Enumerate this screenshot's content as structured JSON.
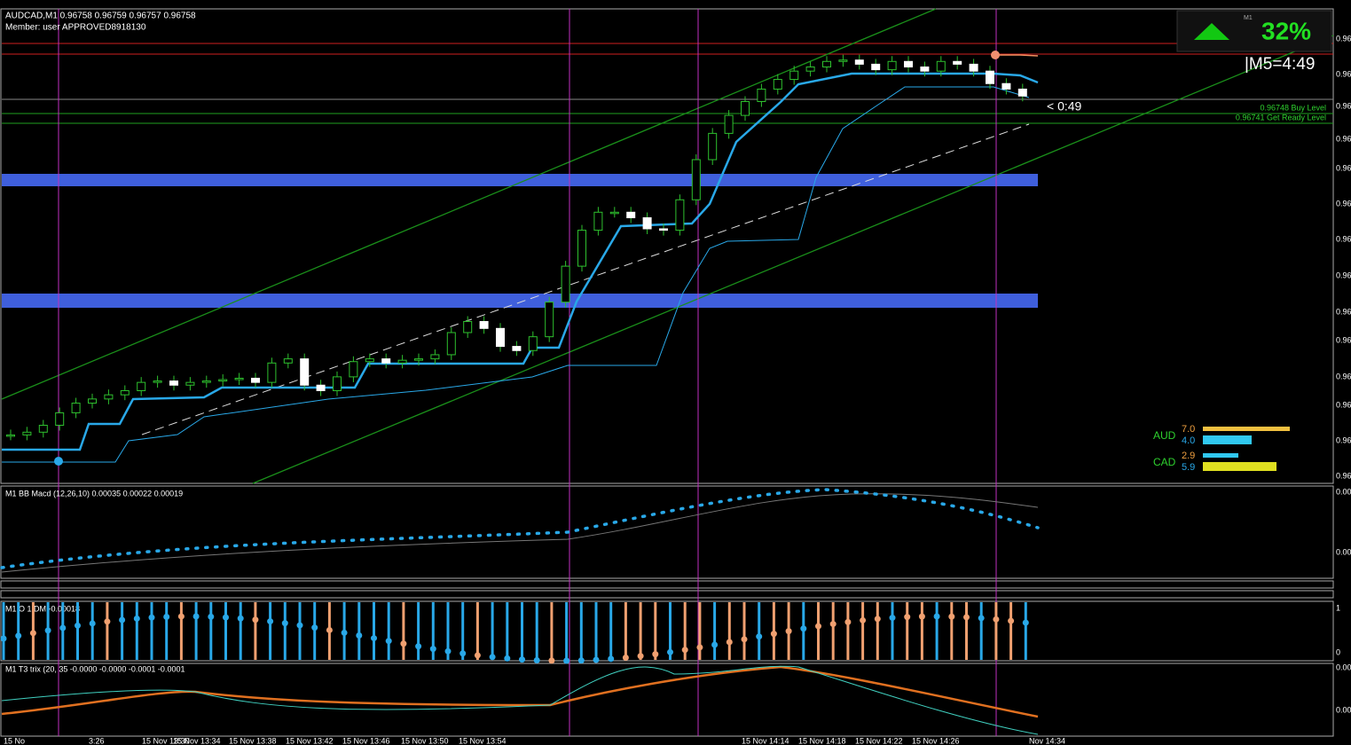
{
  "header": {
    "symbol_line": "AUDCAD,M1  0.96758 0.96759 0.96757 0.96758",
    "member_line": "Member:  user   APPROVED8918130"
  },
  "levels": {
    "buy_label": "0.96748 Buy Level",
    "ready_label": "0.96741 Get Ready Level",
    "countdown": "< 0:49"
  },
  "signal_box": {
    "timeframe": "M1",
    "percent": "32%",
    "m5_timer": "|M5=4:49"
  },
  "strength": {
    "aud_label": "AUD",
    "aud_values": [
      "7.0",
      "4.0"
    ],
    "cad_label": "CAD",
    "cad_values": [
      "2.9",
      "5.9"
    ]
  },
  "price_axis": [
    "0.96",
    "0.96",
    "0.96",
    "0.96",
    "0.96",
    "0.96",
    "0.96",
    "0.96",
    "0.96",
    "0.96",
    "0.96",
    "0.96",
    "0.96",
    "0.96"
  ],
  "price_chart": {
    "ylim": [
      0.96477,
      0.9682
    ],
    "closes": [
      0.96512,
      0.96514,
      0.96519,
      0.96528,
      0.96535,
      0.96538,
      0.96541,
      0.96544,
      0.9655,
      0.96551,
      0.96548,
      0.9655,
      0.96551,
      0.96552,
      0.96553,
      0.9655,
      0.96564,
      0.96567,
      0.96548,
      0.96544,
      0.96554,
      0.96565,
      0.96567,
      0.96564,
      0.96566,
      0.96567,
      0.9657,
      0.96586,
      0.96594,
      0.96589,
      0.96576,
      0.96573,
      0.96583,
      0.96608,
      0.96634,
      0.9666,
      0.96673,
      0.96673,
      0.96669,
      0.96661,
      0.9666,
      0.96682,
      0.96711,
      0.9673,
      0.96743,
      0.96753,
      0.96762,
      0.96769,
      0.96775,
      0.96778,
      0.96782,
      0.96783,
      0.9678,
      0.96776,
      0.96782,
      0.96778,
      0.96775,
      0.96782,
      0.9678,
      0.96775,
      0.96766,
      0.96762,
      0.96757
    ]
  },
  "macd_panel": {
    "title": "M1 BB Macd (12,26,10) 0.00035 0.00022 0.00019",
    "axis": [
      "0.00",
      "0.00"
    ]
  },
  "osc_panel": {
    "title": "M1 O 1  DM  -0.00018",
    "axis": [
      "1",
      "0"
    ]
  },
  "trix_panel": {
    "title": "M1 T3 trix (20, 35 -0.0000 -0.0000 -0.0001 -0.0001",
    "axis": [
      "0.00",
      "0.00"
    ]
  },
  "time_axis": [
    "15 No",
    "3:26",
    "15 Nov 13:30",
    "15 Nov 13:34",
    "15 Nov 13:38",
    "15 Nov 13:42",
    "15 Nov 13:46",
    "15 Nov 13:50",
    "15 Nov 13:54",
    "15 Nov 14:14",
    "15 Nov 14:18",
    "15 Nov 14:22",
    "15 Nov 14:26",
    "Nov 14:34"
  ]
}
